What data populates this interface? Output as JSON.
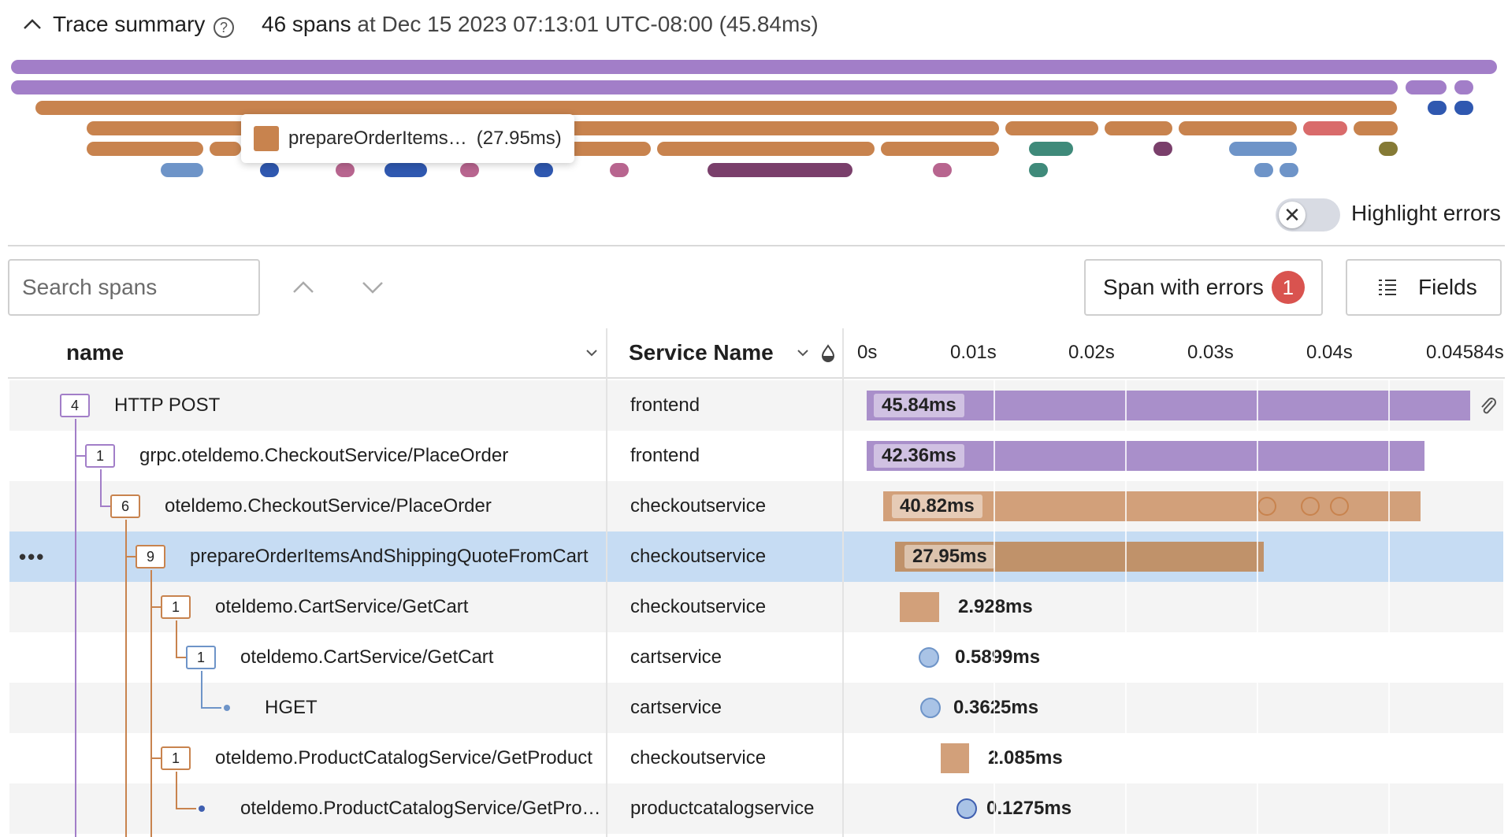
{
  "header": {
    "title": "Trace summary",
    "span_count": "46 spans",
    "at_text": "at Dec 15 2023 07:13:01 UTC-08:00 (45.84ms)"
  },
  "tooltip": {
    "name": "prepareOrderItems…",
    "duration": "(27.95ms)"
  },
  "highlight_errors": {
    "label": "Highlight errors",
    "enabled": false
  },
  "search": {
    "placeholder": "Search spans"
  },
  "errors_button": {
    "label": "Span with errors",
    "count": "1"
  },
  "fields_button": {
    "label": "Fields"
  },
  "columns": {
    "name": "name",
    "service": "Service Name"
  },
  "timeline_ticks": [
    "0s",
    "0.01s",
    "0.02s",
    "0.03s",
    "0.04s",
    "0.04584s"
  ],
  "colors": {
    "frontend": "#a98fca",
    "checkout": "#c8834e",
    "cart": "#6e94c8",
    "error": "#d9534f",
    "selected_row": "#c6dcf3"
  },
  "rows": [
    {
      "count": "4",
      "name": "HTTP POST",
      "service": "frontend",
      "duration": "45.84ms"
    },
    {
      "count": "1",
      "name": "grpc.oteldemo.CheckoutService/PlaceOrder",
      "service": "frontend",
      "duration": "42.36ms"
    },
    {
      "count": "6",
      "name": "oteldemo.CheckoutService/PlaceOrder",
      "service": "checkoutservice",
      "duration": "40.82ms"
    },
    {
      "count": "9",
      "name": "prepareOrderItemsAndShippingQuoteFromCart",
      "service": "checkoutservice",
      "duration": "27.95ms"
    },
    {
      "count": "1",
      "name": "oteldemo.CartService/GetCart",
      "service": "checkoutservice",
      "duration": "2.928ms"
    },
    {
      "count": "1",
      "name": "oteldemo.CartService/GetCart",
      "service": "cartservice",
      "duration": "0.5899ms"
    },
    {
      "count": "",
      "name": "HGET",
      "service": "cartservice",
      "duration": "0.3625ms"
    },
    {
      "count": "1",
      "name": "oteldemo.ProductCatalogService/GetProduct",
      "service": "checkoutservice",
      "duration": "2.085ms"
    },
    {
      "count": "",
      "name": "oteldemo.ProductCatalogService/GetPro…",
      "service": "productcatalogservice",
      "duration": "0.1275ms"
    }
  ]
}
